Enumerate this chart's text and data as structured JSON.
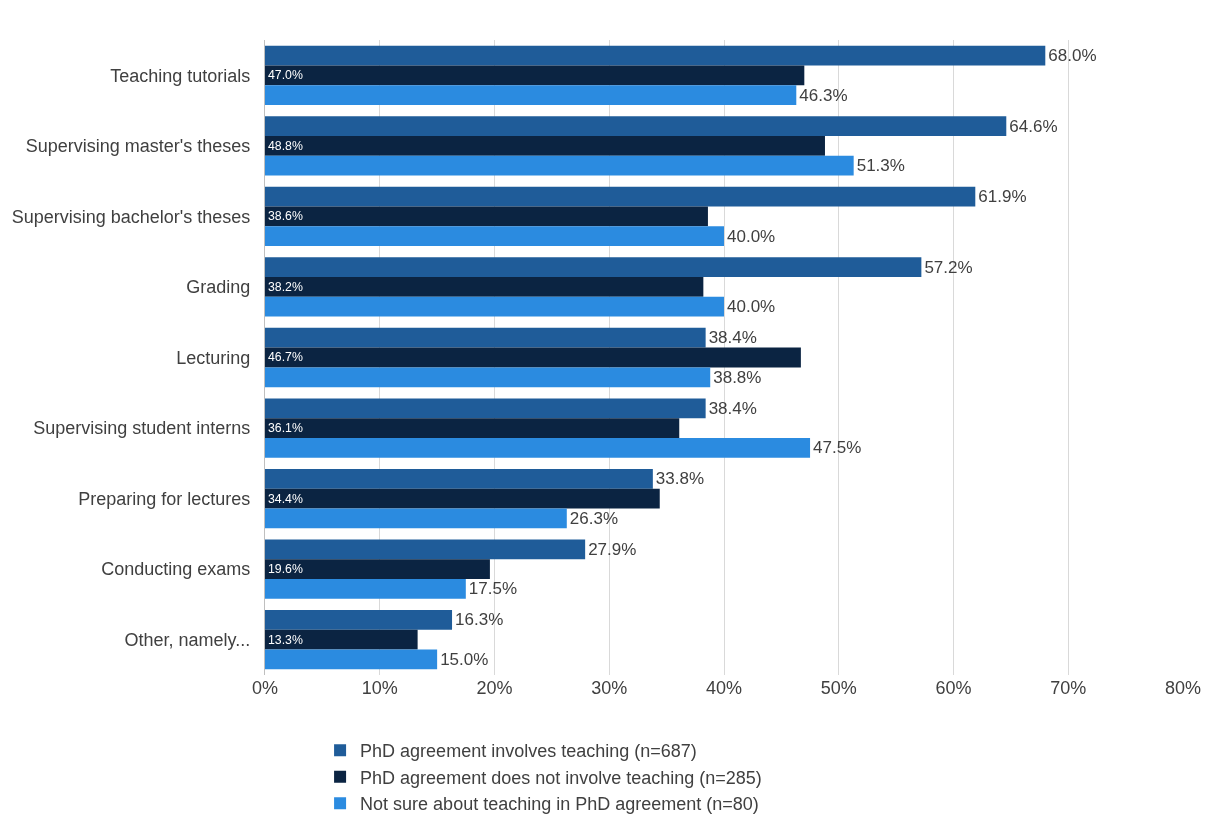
{
  "chart_data": {
    "type": "bar",
    "orientation": "horizontal",
    "categories": [
      "Teaching tutorials",
      "Supervising master's theses",
      "Supervising bachelor's theses",
      "Grading",
      "Lecturing",
      "Supervising student interns",
      "Preparing for lectures",
      "Conducting exams",
      "Other, namely..."
    ],
    "series": [
      {
        "name": "PhD agreement involves teaching (n=687)",
        "color": "#1f5c99",
        "values": [
          68.0,
          64.6,
          61.9,
          57.2,
          38.4,
          38.4,
          33.8,
          27.9,
          16.3
        ],
        "value_labels": [
          "68.0%",
          "64.6%",
          "61.9%",
          "57.2%",
          "38.4%",
          "38.4%",
          "33.8%",
          "27.9%",
          "16.3%"
        ]
      },
      {
        "name": "PhD agreement does not involve teaching (n=285)",
        "color": "#0b2442",
        "values": [
          47.0,
          48.8,
          38.6,
          38.2,
          46.7,
          36.1,
          34.4,
          19.6,
          13.3
        ],
        "value_labels": [
          "47.0%",
          "48.8%",
          "38.6%",
          "38.2%",
          "46.7%",
          "36.1%",
          "34.4%",
          "19.6%",
          "13.3%"
        ]
      },
      {
        "name": "Not sure about teaching in PhD agreement (n=80)",
        "color": "#2b8be0",
        "values": [
          46.3,
          51.3,
          40.0,
          40.0,
          38.8,
          47.5,
          26.3,
          17.5,
          15.0
        ],
        "value_labels": [
          "46.3%",
          "51.3%",
          "40.0%",
          "40.0%",
          "38.8%",
          "47.5%",
          "26.3%",
          "17.5%",
          "15.0%"
        ]
      }
    ],
    "xlim": [
      0,
      80
    ],
    "xticks": [
      {
        "value": 0,
        "label": "0%"
      },
      {
        "value": 10,
        "label": "10%"
      },
      {
        "value": 20,
        "label": "20%"
      },
      {
        "value": 30,
        "label": "30%"
      },
      {
        "value": 40,
        "label": "40%"
      },
      {
        "value": 50,
        "label": "50%"
      },
      {
        "value": 60,
        "label": "60%"
      },
      {
        "value": 70,
        "label": "70%"
      },
      {
        "value": 80,
        "label": "80%"
      }
    ],
    "grid": "x",
    "legend": "bottom"
  }
}
